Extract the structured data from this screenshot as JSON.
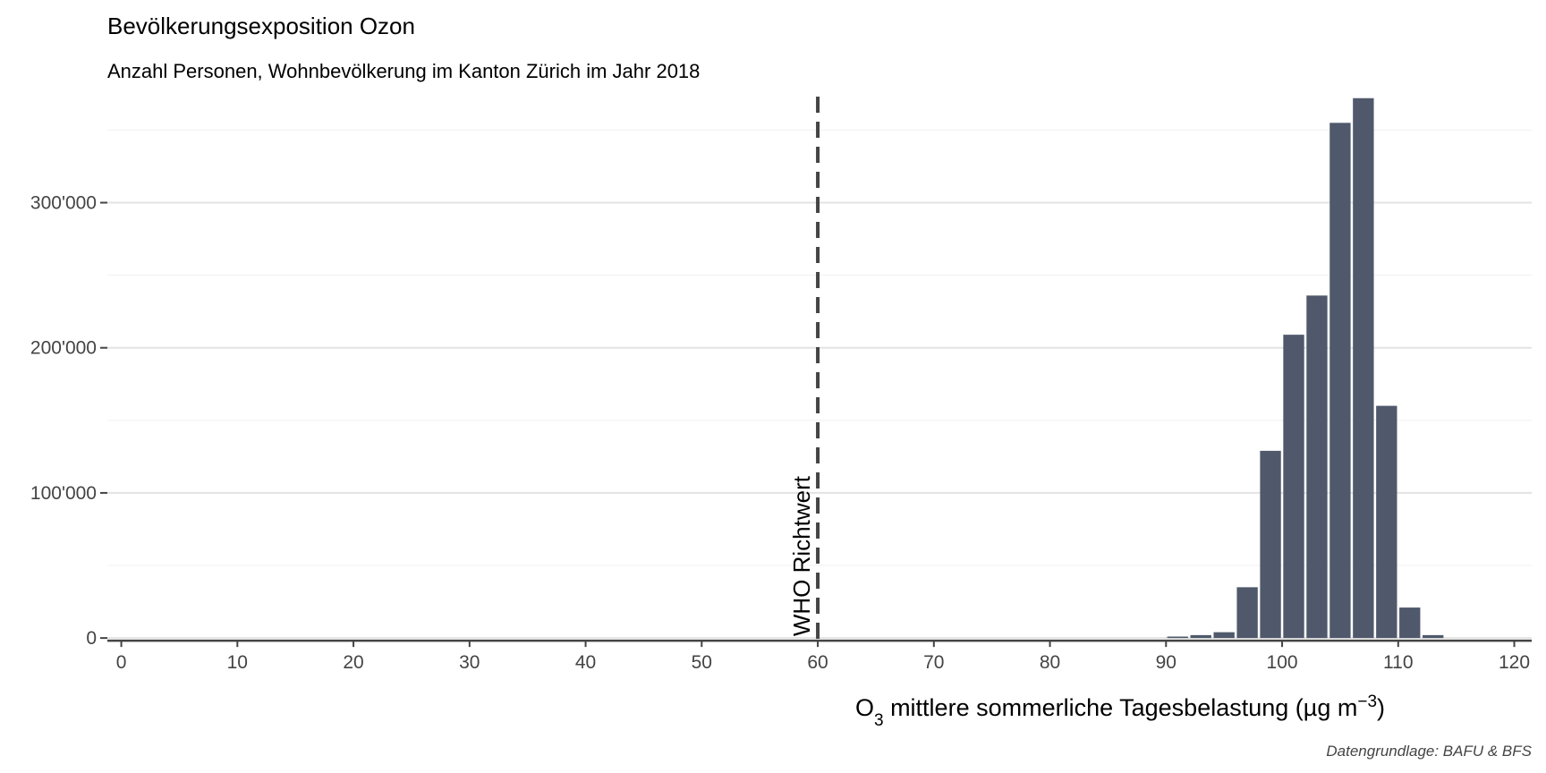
{
  "chart_data": {
    "type": "bar",
    "title": "Bevölkerungsexposition Ozon",
    "subtitle": "Anzahl Personen, Wohnbevölkerung im Kanton Zürich im Jahr 2018",
    "xlabel": {
      "base": "O",
      "sub": "3",
      "text": " mittlere sommerliche Tagesbelastung (µg m",
      "sup": "−3",
      "close": ")"
    },
    "ylabel": "",
    "caption": "Datengrundlage: BAFU & BFS",
    "x_ticks": [
      0,
      10,
      20,
      30,
      40,
      50,
      60,
      70,
      80,
      90,
      100,
      110,
      120
    ],
    "y_ticks": [
      {
        "value": 0,
        "label": "0"
      },
      {
        "value": 100000,
        "label": "100'000"
      },
      {
        "value": 200000,
        "label": "200'000"
      },
      {
        "value": 300000,
        "label": "300'000"
      }
    ],
    "xlim": [
      -1.2,
      121.5
    ],
    "ylim": [
      -3000,
      378000
    ],
    "bar_width": 1.8,
    "bar_color": "#4f596b",
    "grid": true,
    "x": [
      91,
      93,
      95,
      97,
      99,
      101,
      103,
      105,
      107,
      109,
      111,
      113
    ],
    "values": [
      1000,
      2000,
      4000,
      35000,
      129000,
      209000,
      236000,
      355000,
      372000,
      160000,
      21000,
      2000
    ],
    "reference_line": {
      "x": 60,
      "label": "WHO Richtwert"
    }
  }
}
